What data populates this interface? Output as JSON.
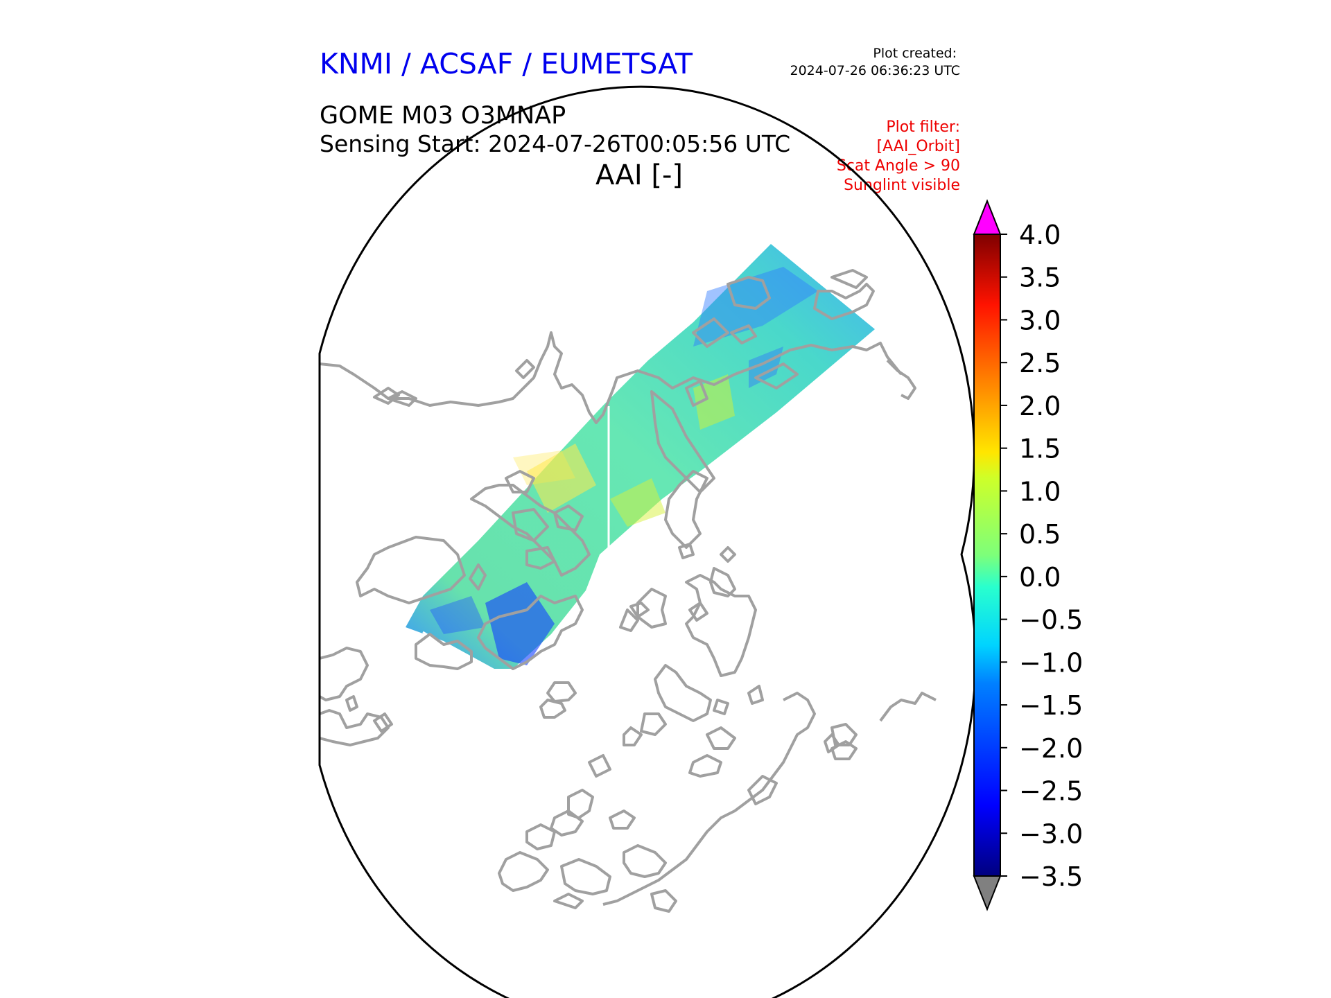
{
  "header": {
    "organization": "KNMI / ACSAF / EUMETSAT",
    "plot_created_label": "Plot created:",
    "plot_created_time": "2024-07-26 06:36:23 UTC",
    "product": "GOME M03 O3MNAP",
    "sensing_start": "Sensing Start: 2024-07-26T00:05:56 UTC",
    "variable": "AAI [-]"
  },
  "filters": {
    "title": "Plot filter:",
    "items": [
      "[AAI_Orbit]",
      "Scat Angle > 90",
      "Sunglint visible"
    ]
  },
  "colorbar": {
    "min": -3.5,
    "max": 4.0,
    "ticks": [
      "4.0",
      "3.5",
      "3.0",
      "2.5",
      "2.0",
      "1.5",
      "1.0",
      "0.5",
      "0.0",
      "−0.5",
      "−1.0",
      "−1.5",
      "−2.0",
      "−2.5",
      "−3.0",
      "−3.5"
    ],
    "over_color": "#ff00ff",
    "under_color": "#808080"
  },
  "colors": {
    "org_title": "#0000ee",
    "filter_text": "#ee0000",
    "coastline": "#a0a0a0"
  },
  "map": {
    "projection": "north-polar stereographic",
    "swath_dominant_aai": -0.5
  }
}
